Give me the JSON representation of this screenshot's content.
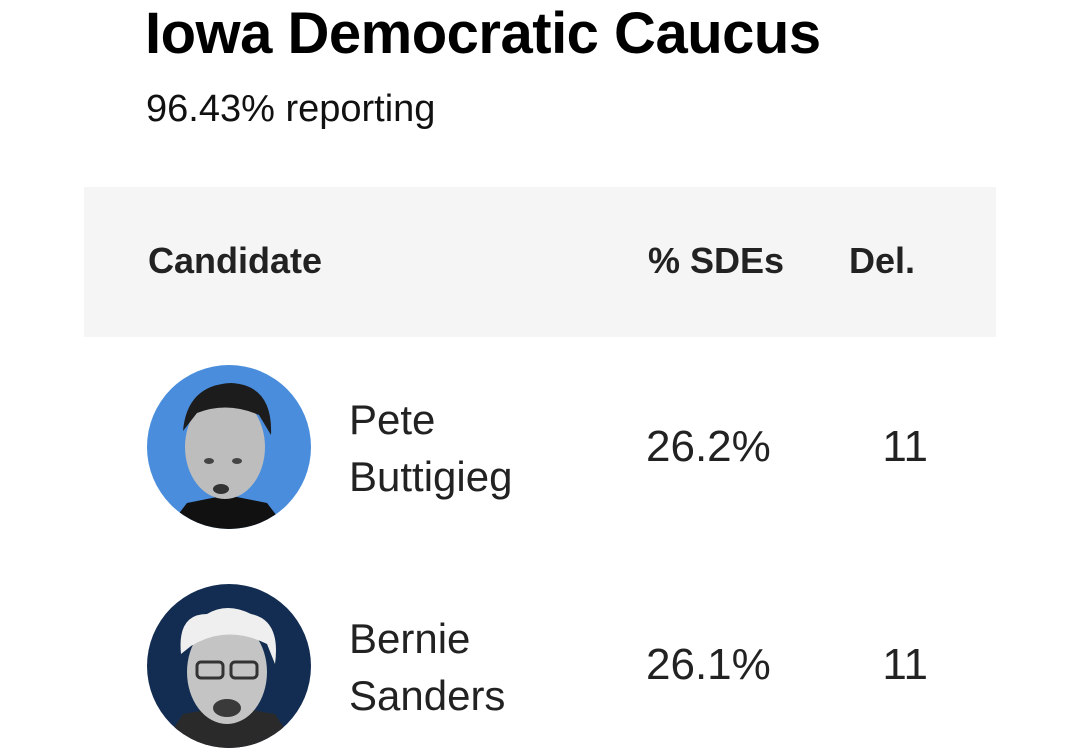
{
  "header": {
    "title": "Iowa Democratic Caucus",
    "subtitle": "96.43% reporting"
  },
  "table": {
    "columns": [
      "Candidate",
      "% SDEs",
      "Del."
    ],
    "rows": [
      {
        "name": "Pete Buttigieg",
        "sdes": "26.2%",
        "delegates": "11"
      },
      {
        "name": "Bernie Sanders",
        "sdes": "26.1%",
        "delegates": "11"
      }
    ]
  }
}
